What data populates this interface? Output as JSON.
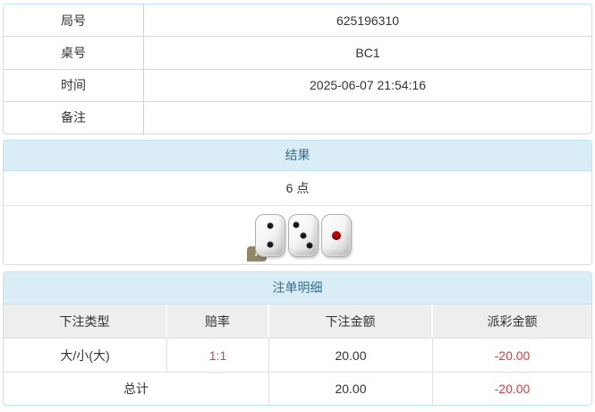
{
  "info_table": {
    "rows": [
      {
        "label": "局号",
        "value": "625196310"
      },
      {
        "label": "桌号",
        "value": "BC1"
      },
      {
        "label": "时间",
        "value": "2025-06-07 21:54:16"
      },
      {
        "label": "备注",
        "value": ""
      }
    ]
  },
  "result_panel": {
    "title": "结果",
    "points": "6 点",
    "dice": [
      2,
      3,
      1
    ],
    "info_badge": "i"
  },
  "bets_panel": {
    "title": "注单明细",
    "columns": [
      "下注类型",
      "赔率",
      "下注金额",
      "派彩金额"
    ],
    "rows": [
      {
        "bet_type": "大/小(大)",
        "odds": "1:1",
        "bet_amount": "20.00",
        "payout": "-20.00"
      }
    ],
    "total": {
      "label": "总计",
      "bet_amount": "20.00",
      "payout": "-20.00"
    }
  },
  "colors": {
    "panel_border": "#bce8f1",
    "heading_bg": "#d9edf7",
    "heading_text": "#31708f",
    "row_border": "#d9d9d9",
    "thead_bg": "#eeeeee",
    "negative_text": "#e4393c",
    "body_text": "#333333"
  }
}
